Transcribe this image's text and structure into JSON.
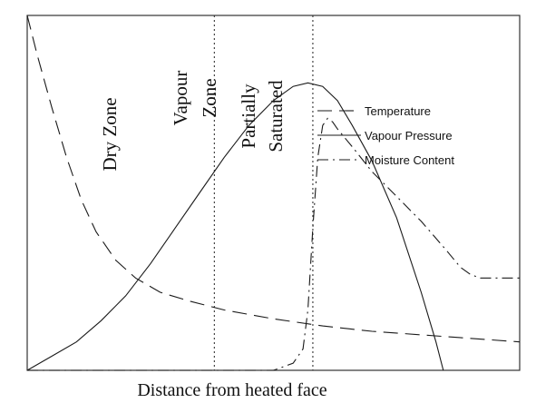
{
  "chart_data": {
    "type": "line",
    "title": "",
    "xlabel": "Distance from heated face",
    "ylabel": "",
    "xlim": [
      0,
      100
    ],
    "ylim": [
      0,
      100
    ],
    "grid": false,
    "legend_position": "top-right",
    "zone_boundaries": [
      38,
      58
    ],
    "zones": [
      {
        "lines": [
          "Dry Zone"
        ]
      },
      {
        "lines": [
          "Vapour",
          "Zone"
        ]
      },
      {
        "lines": [
          "Partially",
          "Saturated"
        ]
      }
    ],
    "series": [
      {
        "name": "Temperature",
        "dash": "long-dash",
        "x": [
          0,
          2,
          5,
          8,
          11,
          14,
          18,
          22,
          27,
          33,
          40,
          50,
          60,
          70,
          80,
          90,
          100
        ],
        "y": [
          100,
          89,
          74,
          60,
          48,
          39,
          31,
          26,
          22,
          19.5,
          17,
          14.5,
          12.5,
          11,
          10,
          9,
          8
        ]
      },
      {
        "name": "Vapour Pressure",
        "dash": "solid",
        "x": [
          0,
          5,
          10,
          15,
          20,
          25,
          30,
          35,
          40,
          45,
          50,
          54,
          57,
          60,
          63,
          66,
          70,
          75,
          80,
          83,
          84.5
        ],
        "y": [
          0,
          4,
          8,
          14,
          21,
          30,
          40,
          50,
          60,
          69,
          76,
          80,
          81,
          80,
          76,
          69,
          59,
          43,
          22,
          8,
          0
        ]
      },
      {
        "name": "Moisture Content",
        "dash": "dash-dot",
        "x": [
          0,
          50,
          54,
          56,
          57,
          58,
          59,
          60,
          61,
          62,
          63,
          66,
          70,
          75,
          80,
          85,
          88,
          90,
          92,
          95,
          100
        ],
        "y": [
          0,
          0,
          2,
          6,
          17,
          40,
          60,
          69,
          71,
          70,
          68,
          63,
          56,
          49,
          42,
          34,
          29,
          27,
          26,
          26,
          26
        ]
      }
    ]
  }
}
